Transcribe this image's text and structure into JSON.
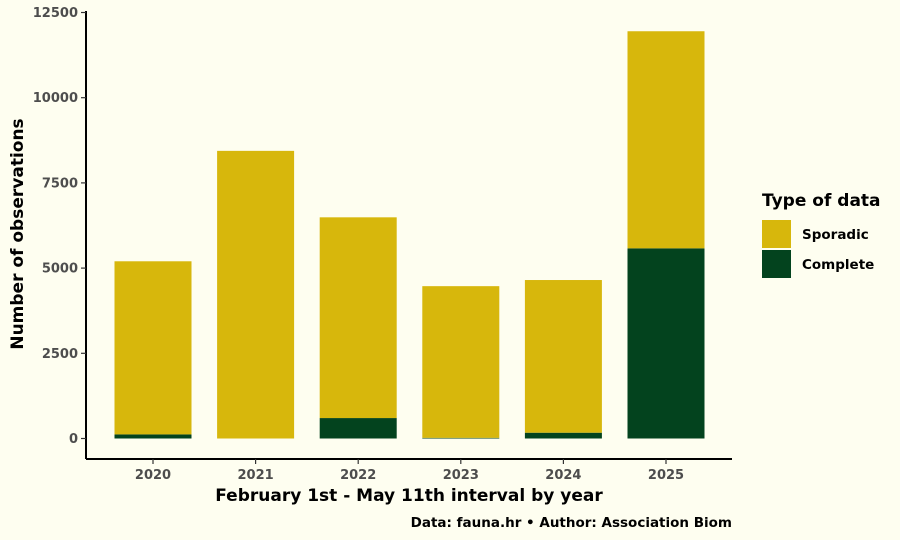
{
  "chart_data": {
    "type": "bar",
    "stacked": true,
    "categories": [
      "2020",
      "2021",
      "2022",
      "2023",
      "2024",
      "2025"
    ],
    "series": [
      {
        "name": "Complete",
        "color": "#03431e",
        "values": [
          120,
          0,
          600,
          20,
          170,
          5580
        ]
      },
      {
        "name": "Sporadic",
        "color": "#d7b70c",
        "values": [
          5080,
          8440,
          5890,
          4450,
          4480,
          6370
        ]
      }
    ],
    "xlabel": "February 1st - May 11th interval by year",
    "ylabel": "Number of observations",
    "ylim": [
      0,
      12500
    ],
    "yticks": [
      0,
      2500,
      5000,
      7500,
      10000,
      12500
    ],
    "legend": {
      "title": "Type of data",
      "position": "right",
      "order": [
        "Sporadic",
        "Complete"
      ]
    },
    "caption": "Data: fauna.hr • Author: Association Biom",
    "grid": false
  }
}
